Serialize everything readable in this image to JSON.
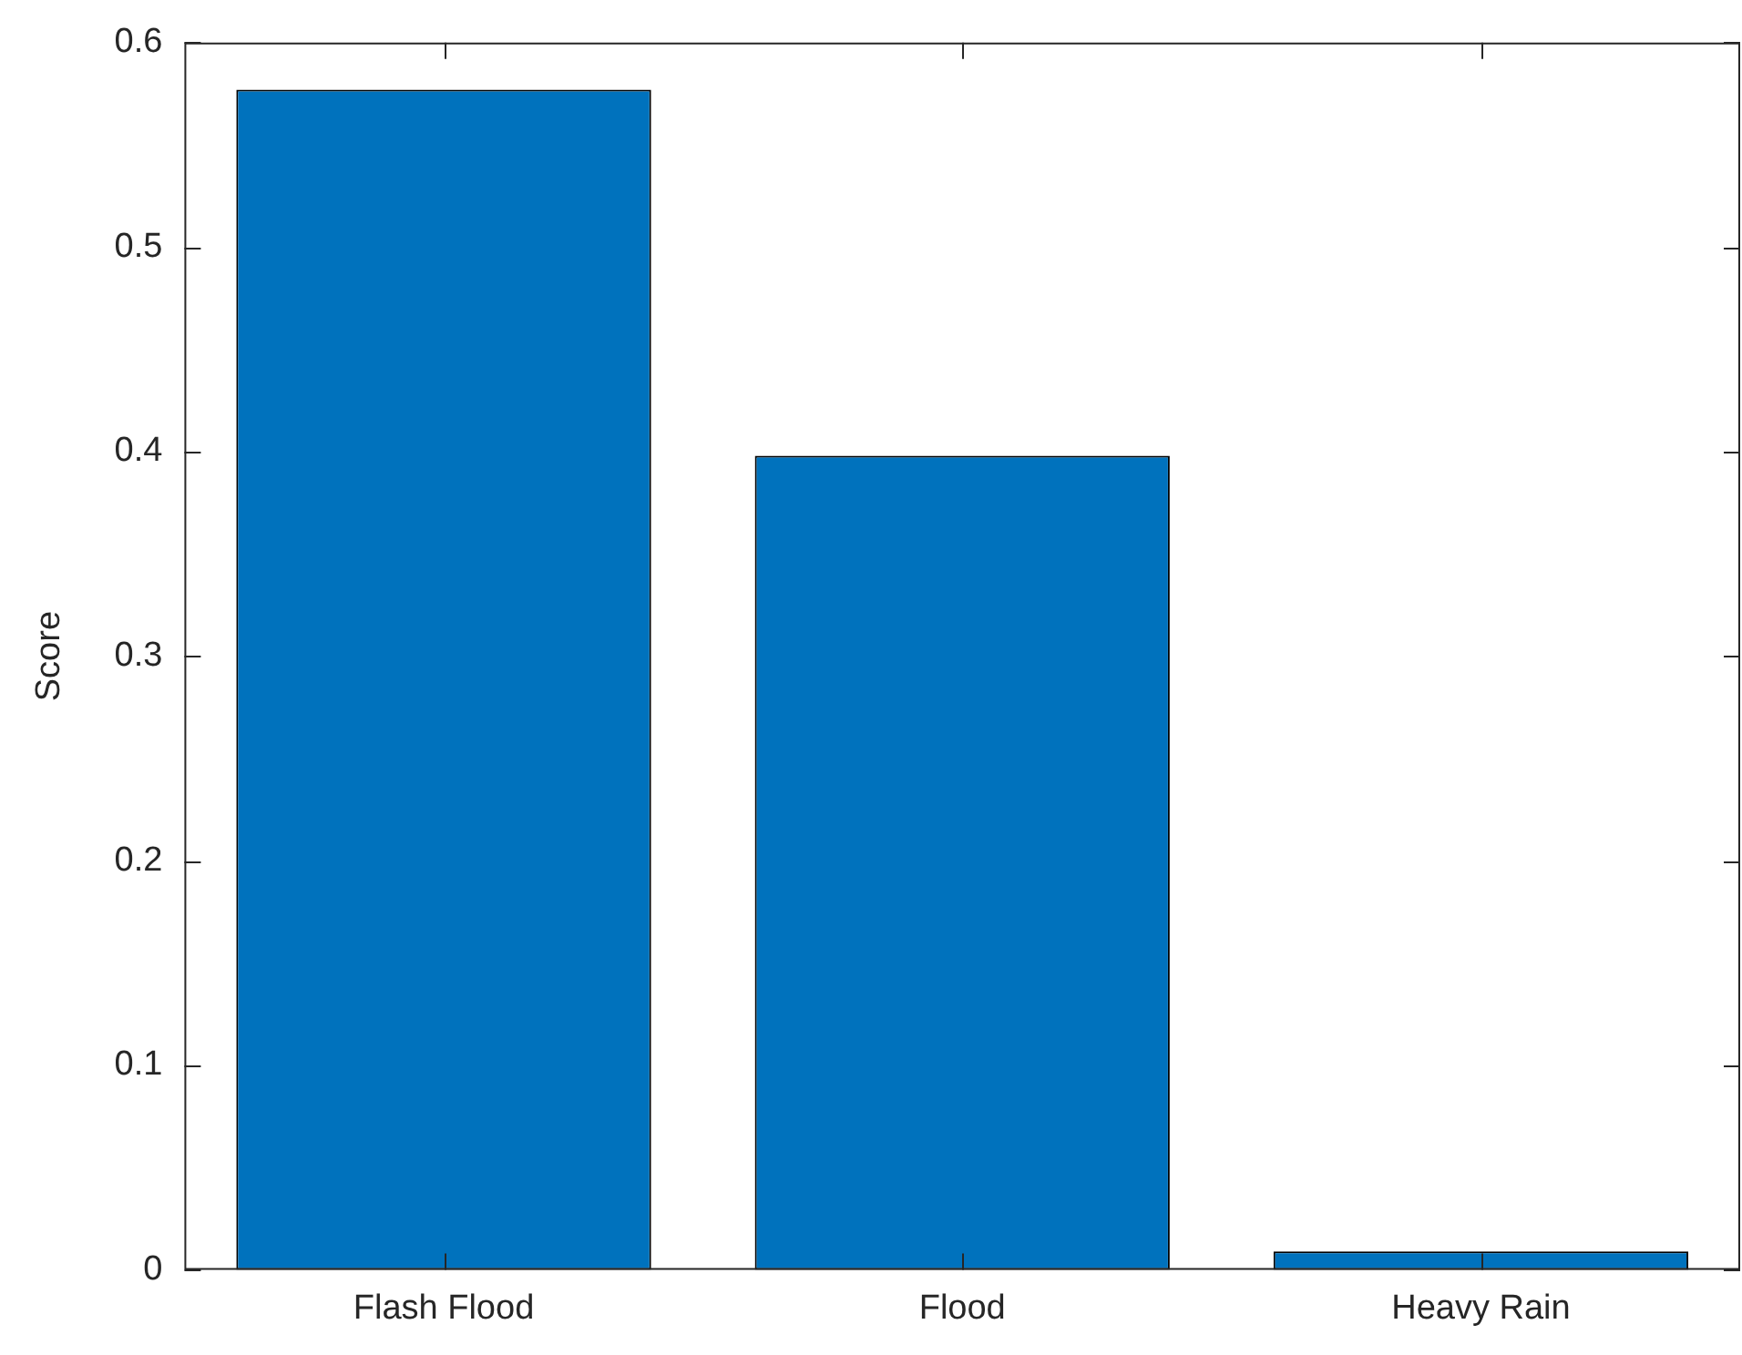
{
  "chart_data": {
    "type": "bar",
    "ylabel": "Score",
    "categories": [
      "Flash Flood",
      "Flood",
      "Heavy Rain"
    ],
    "values": [
      0.577,
      0.398,
      0.009
    ],
    "color": "#0072bd",
    "ylim": [
      0,
      0.6
    ],
    "yticks": [
      0,
      0.1,
      0.2,
      0.3,
      0.4,
      0.5,
      0.6
    ],
    "grid": false,
    "legend": false
  }
}
